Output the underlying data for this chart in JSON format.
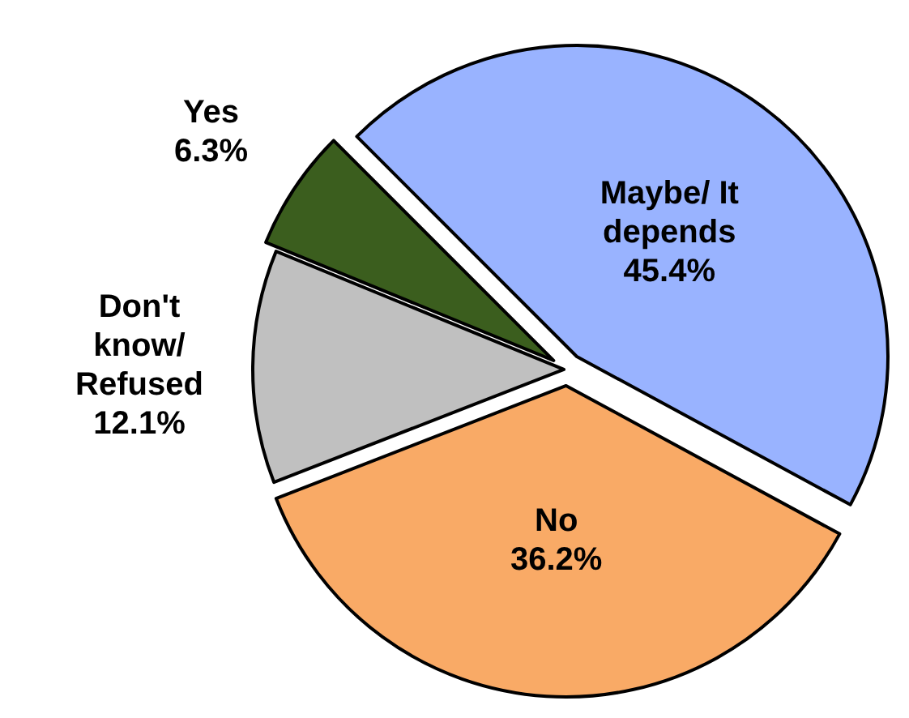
{
  "chart_data": {
    "type": "pie",
    "categories": [
      "Maybe/ It depends",
      "No",
      "Don't know/ Refused",
      "Yes"
    ],
    "values": [
      45.4,
      36.2,
      12.1,
      6.3
    ],
    "colors": [
      "#99b3ff",
      "#f9aa66",
      "#c0c0c0",
      "#3b5e1e"
    ],
    "value_labels": [
      "45.4%",
      "36.2%",
      "12.1%",
      "6.3%"
    ]
  }
}
